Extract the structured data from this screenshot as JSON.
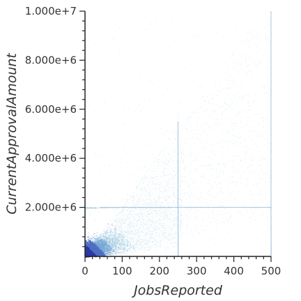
{
  "chart_data": {
    "type": "heatmap",
    "subtype": "2d-density-scatter",
    "title": "",
    "xlabel": "JobsReported",
    "ylabel": "CurrentApprovalAmount",
    "xlim": [
      0,
      500
    ],
    "ylim": [
      0,
      10000000
    ],
    "x_ticks": [
      0,
      100,
      200,
      300,
      400,
      500
    ],
    "x_tick_labels": [
      "0",
      "100",
      "200",
      "300",
      "400",
      "500"
    ],
    "y_ticks": [
      2000000,
      4000000,
      6000000,
      8000000,
      10000000
    ],
    "y_tick_labels": [
      "2.000e+6",
      "4.000e+6",
      "6.000e+6",
      "8.000e+6",
      "1.000e+7"
    ],
    "grid": false,
    "colormap": [
      "#cfe6ee",
      "#9fcbe0",
      "#78a8d6",
      "#4f6fc2",
      "#2a3aa6"
    ],
    "density_regions": [
      {
        "jobs_range": [
          0,
          60
        ],
        "amount_range": [
          0,
          800000
        ],
        "relative_density": 1.0
      },
      {
        "jobs_range": [
          0,
          150
        ],
        "amount_range": [
          0,
          2000000
        ],
        "relative_density": 0.6
      },
      {
        "jobs_range": [
          100,
          300
        ],
        "amount_range": [
          500000,
          4000000
        ],
        "relative_density": 0.3
      },
      {
        "jobs_range": [
          0,
          500
        ],
        "amount_range": [
          0,
          10000000
        ],
        "relative_density": 0.05
      }
    ],
    "notable_lines": [
      {
        "orientation": "horizontal",
        "value": 2000000,
        "x_range": [
          40,
          500
        ]
      },
      {
        "orientation": "vertical",
        "value": 250,
        "y_range": [
          0,
          5500000
        ]
      },
      {
        "orientation": "vertical",
        "value": 500,
        "y_range": [
          0,
          10000000
        ]
      }
    ]
  }
}
